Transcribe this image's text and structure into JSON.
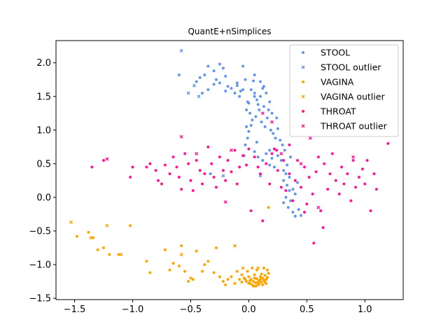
{
  "chart_data": {
    "type": "scatter",
    "title": "QuantE+nSimplices",
    "xlabel": "",
    "ylabel": "",
    "xlim": [
      -1.66,
      1.33
    ],
    "ylim": [
      -1.52,
      2.33
    ],
    "xticks": [
      -1.5,
      -1.0,
      -0.5,
      0.0,
      0.5,
      1.0
    ],
    "xtick_labels": [
      "−1.5",
      "−1.0",
      "−0.5",
      "0.0",
      "0.5",
      "1.0"
    ],
    "yticks": [
      -1.5,
      -1.0,
      -0.5,
      0.0,
      0.5,
      1.0,
      1.5,
      2.0
    ],
    "ytick_labels": [
      "−1.5",
      "−1.0",
      "−0.5",
      "0.0",
      "0.5",
      "1.0",
      "1.5",
      "2.0"
    ],
    "grid": false,
    "legend_position": "top-right",
    "series": [
      {
        "name": "STOOL",
        "marker": "circle",
        "color": "#6495ed",
        "points": [
          [
            -0.45,
            1.72
          ],
          [
            -0.42,
            1.78
          ],
          [
            -0.38,
            1.82
          ],
          [
            -0.35,
            1.95
          ],
          [
            -0.3,
            1.88
          ],
          [
            -0.28,
            1.75
          ],
          [
            -0.25,
            1.7
          ],
          [
            -0.22,
            1.92
          ],
          [
            -0.2,
            1.8
          ],
          [
            -0.18,
            1.65
          ],
          [
            -0.15,
            1.62
          ],
          [
            -0.12,
            1.55
          ],
          [
            -0.1,
            1.7
          ],
          [
            -0.08,
            1.5
          ],
          [
            -0.05,
            1.6
          ],
          [
            -0.03,
            1.75
          ],
          [
            -0.01,
            1.42
          ],
          [
            0.0,
            1.4
          ],
          [
            0.02,
            1.6
          ],
          [
            0.04,
            1.73
          ],
          [
            0.05,
            1.55
          ],
          [
            0.07,
            1.45
          ],
          [
            0.08,
            1.38
          ],
          [
            0.1,
            1.5
          ],
          [
            0.12,
            1.62
          ],
          [
            0.13,
            1.35
          ],
          [
            0.15,
            1.55
          ],
          [
            0.17,
            1.3
          ],
          [
            0.18,
            1.42
          ],
          [
            0.2,
            1.25
          ],
          [
            -0.02,
            1.3
          ],
          [
            0.01,
            1.25
          ],
          [
            0.03,
            1.15
          ],
          [
            0.06,
            1.2
          ],
          [
            0.09,
            1.3
          ],
          [
            0.11,
            1.12
          ],
          [
            0.14,
            1.05
          ],
          [
            0.16,
            1.18
          ],
          [
            0.19,
            1.0
          ],
          [
            0.21,
            0.95
          ],
          [
            0.23,
            0.88
          ],
          [
            0.25,
            1.02
          ],
          [
            0.27,
            0.85
          ],
          [
            0.29,
            0.78
          ],
          [
            0.31,
            0.7
          ],
          [
            -0.02,
            1.05
          ],
          [
            -0.01,
            0.88
          ],
          [
            0.0,
            0.98
          ],
          [
            0.02,
            1.07
          ],
          [
            -0.03,
            0.78
          ],
          [
            0.05,
            0.68
          ],
          [
            0.08,
            0.6
          ],
          [
            0.12,
            0.55
          ],
          [
            0.15,
            0.65
          ],
          [
            0.18,
            0.48
          ],
          [
            0.2,
            0.58
          ],
          [
            0.22,
            0.45
          ],
          [
            0.25,
            0.62
          ],
          [
            0.28,
            0.55
          ],
          [
            0.3,
            0.4
          ],
          [
            0.32,
            0.35
          ],
          [
            0.3,
            0.25
          ],
          [
            0.33,
            0.18
          ],
          [
            0.35,
            0.1
          ],
          [
            0.32,
            0.0
          ],
          [
            0.36,
            -0.05
          ],
          [
            0.3,
            -0.08
          ],
          [
            0.34,
            -0.15
          ],
          [
            0.38,
            -0.22
          ],
          [
            0.4,
            -0.28
          ],
          [
            0.45,
            -0.27
          ],
          [
            0.43,
            -0.18
          ],
          [
            0.4,
            0.05
          ],
          [
            0.38,
            0.12
          ],
          [
            0.42,
            0.22
          ],
          [
            0.35,
            0.3
          ],
          [
            0.33,
            0.48
          ],
          [
            0.36,
            0.6
          ],
          [
            -0.35,
            1.6
          ],
          [
            -0.4,
            1.55
          ],
          [
            -0.3,
            1.68
          ],
          [
            -0.2,
            1.58
          ],
          [
            -0.1,
            1.66
          ],
          [
            0.05,
            1.82
          ],
          [
            -0.05,
            1.95
          ],
          [
            0.1,
            1.72
          ],
          [
            -0.25,
            1.98
          ],
          [
            -0.6,
            1.82
          ],
          [
            -0.33,
            0.35
          ],
          [
            0.05,
            1.5
          ],
          [
            -0.07,
            1.58
          ],
          [
            0.13,
            1.65
          ],
          [
            0.24,
            1.18
          ],
          [
            0.07,
            0.82
          ],
          [
            0.18,
            0.7
          ],
          [
            -0.04,
            0.62
          ]
        ]
      },
      {
        "name": "STOOL outlier",
        "marker": "x",
        "color": "#6495ed",
        "points": [
          [
            -0.58,
            2.18
          ],
          [
            -0.52,
            1.55
          ],
          [
            -0.47,
            1.66
          ],
          [
            -0.43,
            1.5
          ],
          [
            -0.22,
            0.32
          ],
          [
            0.1,
            0.32
          ]
        ]
      },
      {
        "name": "VAGINA",
        "marker": "circle",
        "color": "#ffa500",
        "points": [
          [
            -1.48,
            -0.58
          ],
          [
            -1.38,
            -0.52
          ],
          [
            -1.34,
            -0.6
          ],
          [
            -1.3,
            -0.78
          ],
          [
            -1.25,
            -0.75
          ],
          [
            -1.2,
            -0.85
          ],
          [
            -1.12,
            -0.85
          ],
          [
            -1.02,
            -0.42
          ],
          [
            -0.88,
            -0.95
          ],
          [
            -0.85,
            -1.12
          ],
          [
            -0.72,
            -0.78
          ],
          [
            -0.68,
            -1.08
          ],
          [
            -0.65,
            -0.98
          ],
          [
            -0.6,
            -1.02
          ],
          [
            -0.58,
            -0.72
          ],
          [
            -0.55,
            -1.1
          ],
          [
            -0.52,
            -1.25
          ],
          [
            -0.5,
            -1.2
          ],
          [
            -0.48,
            -1.22
          ],
          [
            -0.45,
            -0.8
          ],
          [
            -0.4,
            -1.1
          ],
          [
            -0.38,
            -1.0
          ],
          [
            -0.35,
            -0.95
          ],
          [
            -0.3,
            -1.12
          ],
          [
            -0.28,
            -0.75
          ],
          [
            -0.25,
            -1.18
          ],
          [
            -0.22,
            -1.25
          ],
          [
            -0.2,
            -1.3
          ],
          [
            -0.18,
            -1.22
          ],
          [
            -0.15,
            -1.18
          ],
          [
            -0.12,
            -1.28
          ],
          [
            -0.1,
            -1.1
          ],
          [
            -0.08,
            -1.22
          ],
          [
            -0.06,
            -1.15
          ],
          [
            -0.04,
            -1.2
          ],
          [
            -0.02,
            -1.25
          ],
          [
            0.0,
            -1.18
          ],
          [
            0.01,
            -1.28
          ],
          [
            0.02,
            -1.22
          ],
          [
            0.03,
            -1.3
          ],
          [
            0.04,
            -1.25
          ],
          [
            0.05,
            -1.15
          ],
          [
            0.06,
            -1.27
          ],
          [
            0.07,
            -1.21
          ],
          [
            0.08,
            -1.3
          ],
          [
            0.09,
            -1.24
          ],
          [
            0.1,
            -1.18
          ],
          [
            0.11,
            -1.26
          ],
          [
            0.12,
            -1.2
          ],
          [
            0.13,
            -1.23
          ],
          [
            0.14,
            -1.16
          ],
          [
            0.15,
            -1.22
          ],
          [
            0.16,
            -1.08
          ],
          [
            0.17,
            -1.13
          ],
          [
            0.03,
            -1.05
          ],
          [
            0.07,
            -1.08
          ],
          [
            -0.01,
            -1.1
          ],
          [
            0.13,
            -1.05
          ],
          [
            0.11,
            -1.14
          ],
          [
            0.0,
            -1.28
          ],
          [
            0.06,
            -1.32
          ],
          [
            0.09,
            -1.29
          ],
          [
            0.15,
            -1.28
          ],
          [
            0.12,
            -1.3
          ],
          [
            0.04,
            -1.32
          ],
          [
            0.01,
            -1.24
          ],
          [
            0.08,
            -1.26
          ],
          [
            0.14,
            -1.26
          ],
          [
            0.1,
            -1.22
          ],
          [
            -0.03,
            -1.22
          ],
          [
            0.05,
            -1.2
          ],
          [
            0.16,
            -1.19
          ],
          [
            -0.06,
            -1.26
          ],
          [
            0.17,
            -0.15
          ]
        ]
      },
      {
        "name": "VAGINA outlier",
        "marker": "x",
        "color": "#ffa500",
        "points": [
          [
            -1.53,
            -0.37
          ],
          [
            -1.36,
            -0.6
          ],
          [
            -1.22,
            -0.42
          ],
          [
            -1.1,
            -0.85
          ],
          [
            -0.58,
            -0.85
          ],
          [
            -0.12,
            -0.72
          ],
          [
            -0.05,
            -1.05
          ],
          [
            0.08,
            -1.05
          ]
        ]
      },
      {
        "name": "THROAT",
        "marker": "circle",
        "color": "#ff1493",
        "points": [
          [
            -1.35,
            0.45
          ],
          [
            -1.25,
            0.55
          ],
          [
            -1.02,
            0.3
          ],
          [
            -1.0,
            0.45
          ],
          [
            -0.88,
            0.45
          ],
          [
            -0.85,
            0.5
          ],
          [
            -0.8,
            0.4
          ],
          [
            -0.78,
            0.25
          ],
          [
            -0.75,
            0.2
          ],
          [
            -0.72,
            0.48
          ],
          [
            -0.68,
            0.35
          ],
          [
            -0.65,
            0.6
          ],
          [
            -0.62,
            0.45
          ],
          [
            -0.6,
            0.3
          ],
          [
            -0.58,
            0.12
          ],
          [
            -0.55,
            0.65
          ],
          [
            -0.52,
            0.5
          ],
          [
            -0.5,
            0.25
          ],
          [
            -0.48,
            0.1
          ],
          [
            -0.45,
            0.55
          ],
          [
            -0.42,
            0.4
          ],
          [
            -0.4,
            0.2
          ],
          [
            -0.38,
            0.35
          ],
          [
            -0.35,
            0.75
          ],
          [
            -0.32,
            0.5
          ],
          [
            -0.3,
            0.3
          ],
          [
            -0.28,
            0.15
          ],
          [
            -0.25,
            0.6
          ],
          [
            -0.22,
            0.4
          ],
          [
            -0.2,
            0.25
          ],
          [
            -0.18,
            0.55
          ],
          [
            -0.15,
            0.38
          ],
          [
            -0.12,
            0.7
          ],
          [
            -0.1,
            0.2
          ],
          [
            -0.08,
            0.45
          ],
          [
            -0.05,
            0.62
          ],
          [
            -0.02,
            0.48
          ],
          [
            0.0,
            0.72
          ],
          [
            0.02,
            -0.2
          ],
          [
            0.05,
            0.6
          ],
          [
            0.08,
            0.45
          ],
          [
            0.1,
            0.35
          ],
          [
            0.12,
            -0.35
          ],
          [
            0.15,
            0.5
          ],
          [
            0.18,
            0.2
          ],
          [
            0.2,
            0.65
          ],
          [
            0.22,
            0.72
          ],
          [
            0.25,
            0.4
          ],
          [
            0.28,
            0.15
          ],
          [
            0.3,
            0.55
          ],
          [
            0.32,
            0.1
          ],
          [
            0.35,
            0.35
          ],
          [
            0.38,
            -0.05
          ],
          [
            0.4,
            0.25
          ],
          [
            0.42,
            0.55
          ],
          [
            0.45,
            0.15
          ],
          [
            0.48,
            0.45
          ],
          [
            0.5,
            -0.1
          ],
          [
            0.52,
            0.3
          ],
          [
            0.55,
            0.05
          ],
          [
            0.58,
            0.38
          ],
          [
            0.6,
            0.6
          ],
          [
            0.62,
            -0.2
          ],
          [
            0.65,
            0.5
          ],
          [
            0.68,
            0.12
          ],
          [
            0.7,
            0.35
          ],
          [
            0.72,
            0.65
          ],
          [
            0.75,
            0.25
          ],
          [
            0.78,
            0.05
          ],
          [
            0.8,
            0.45
          ],
          [
            0.82,
            0.2
          ],
          [
            0.85,
            0.35
          ],
          [
            0.88,
            -0.05
          ],
          [
            0.9,
            0.55
          ],
          [
            0.92,
            0.15
          ],
          [
            0.95,
            0.3
          ],
          [
            0.98,
            0.42
          ],
          [
            1.0,
            0.2
          ],
          [
            1.02,
            0.55
          ],
          [
            1.05,
            -0.2
          ],
          [
            1.08,
            0.35
          ],
          [
            1.1,
            0.12
          ],
          [
            1.2,
            0.8
          ],
          [
            0.56,
            -0.68
          ],
          [
            0.64,
            -0.45
          ],
          [
            0.48,
            -0.22
          ],
          [
            0.24,
            0.7
          ],
          [
            0.35,
            0.78
          ]
        ]
      },
      {
        "name": "THROAT outlier",
        "marker": "x",
        "color": "#ff1493",
        "points": [
          [
            -1.22,
            0.57
          ],
          [
            -0.58,
            0.9
          ],
          [
            -0.45,
            0.65
          ],
          [
            -0.2,
            -0.07
          ],
          [
            -0.15,
            0.7
          ],
          [
            0.12,
            1.25
          ],
          [
            0.2,
            1.12
          ],
          [
            0.28,
            0.65
          ],
          [
            0.45,
            0.5
          ],
          [
            0.53,
            0.88
          ],
          [
            0.6,
            -0.15
          ],
          [
            0.9,
            0.6
          ]
        ]
      }
    ]
  }
}
